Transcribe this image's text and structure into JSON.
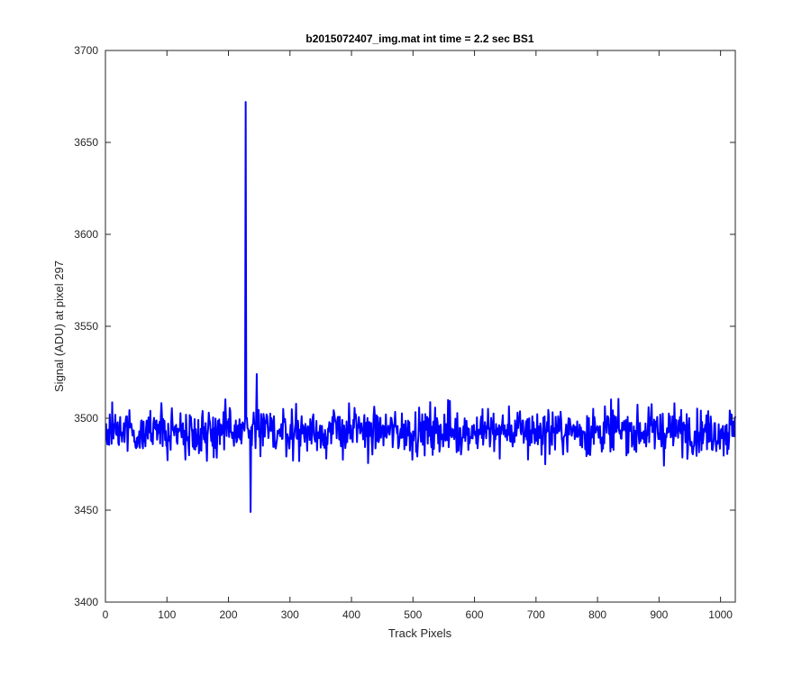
{
  "chart_data": {
    "type": "line",
    "title": "b2015072407_img.mat int time = 2.2 sec   BS1",
    "xlabel": "Track Pixels",
    "ylabel": "Signal (ADU) at pixel 297",
    "xlim": [
      0,
      1024
    ],
    "ylim": [
      3400,
      3700
    ],
    "x_ticks": [
      0,
      100,
      200,
      300,
      400,
      500,
      600,
      700,
      800,
      900,
      1000
    ],
    "y_ticks": [
      3400,
      3450,
      3500,
      3550,
      3600,
      3650,
      3700
    ],
    "grid": false,
    "legend": "none",
    "series": [
      {
        "color": "#0000ff",
        "baseline": 3493,
        "noise_amplitude": 9,
        "noise_range": [
          3464,
          3522
        ],
        "x_start": 1,
        "x_end": 1024,
        "spikes": [
          {
            "x": 227,
            "y": 3500
          },
          {
            "x": 228,
            "y": 3672
          },
          {
            "x": 229,
            "y": 3500
          },
          {
            "x": 236,
            "y": 3449
          },
          {
            "x": 246,
            "y": 3524
          }
        ]
      }
    ],
    "x_tick_labels": [
      "0",
      "100",
      "200",
      "300",
      "400",
      "500",
      "600",
      "700",
      "800",
      "900",
      "1000"
    ],
    "y_tick_labels": [
      "3400",
      "3450",
      "3500",
      "3550",
      "3600",
      "3650",
      "3700"
    ]
  }
}
